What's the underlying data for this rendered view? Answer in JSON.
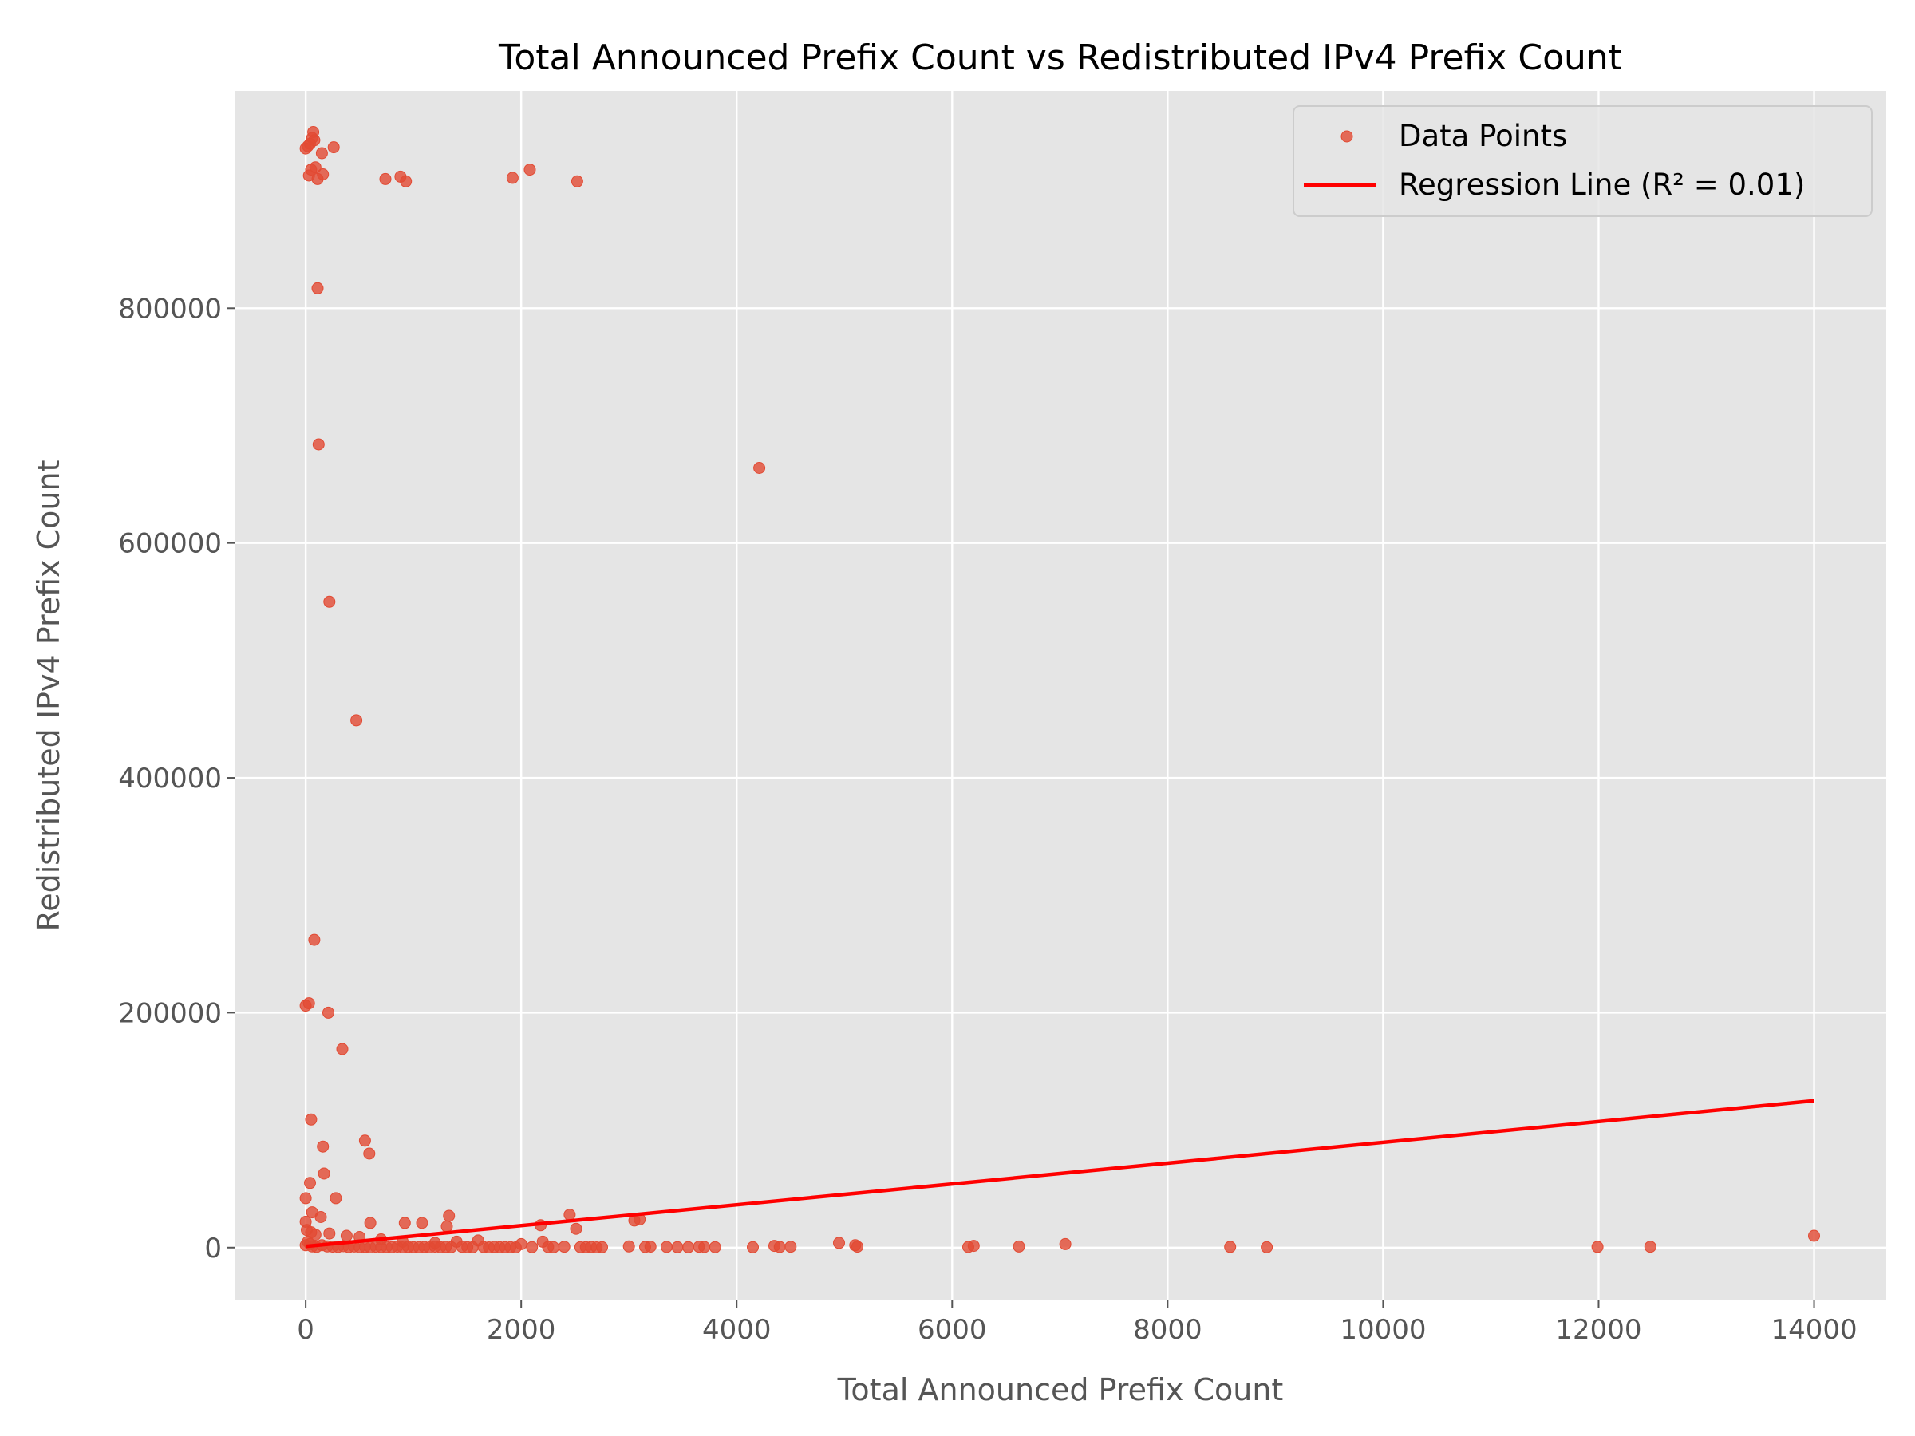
{
  "chart_data": {
    "type": "scatter",
    "title": "Total Announced Prefix Count vs Redistributed IPv4 Prefix Count",
    "xlabel": "Total Announced Prefix Count",
    "ylabel": "Redistributed IPv4 Prefix Count",
    "xlim": [
      -660,
      14670
    ],
    "ylim": [
      -45000,
      985000
    ],
    "xticks": [
      0,
      2000,
      4000,
      6000,
      8000,
      10000,
      12000,
      14000
    ],
    "xtick_labels": [
      "0",
      "2000",
      "4000",
      "6000",
      "8000",
      "10000",
      "12000",
      "14000"
    ],
    "yticks": [
      0,
      200000,
      400000,
      600000,
      800000
    ],
    "ytick_labels": [
      "0",
      "200000",
      "400000",
      "600000",
      "800000"
    ],
    "grid": true,
    "background": "#e5e5e5",
    "point_color": "#e24a33",
    "line_color": "#ff0000",
    "legend_position": "top-right",
    "legend": {
      "points_label": "Data Points",
      "line_label": "Regression Line (R² = 0.01)"
    },
    "regression": {
      "x": [
        0,
        14000
      ],
      "y": [
        1000,
        125000
      ]
    },
    "series": [
      {
        "name": "Data Points",
        "points": [
          [
            0,
            936000
          ],
          [
            20,
            938000
          ],
          [
            40,
            940000
          ],
          [
            60,
            945000
          ],
          [
            70,
            950000
          ],
          [
            80,
            943000
          ],
          [
            260,
            937000
          ],
          [
            150,
            932000
          ],
          [
            30,
            913000
          ],
          [
            50,
            918000
          ],
          [
            90,
            920000
          ],
          [
            110,
            910000
          ],
          [
            160,
            914000
          ],
          [
            740,
            910000
          ],
          [
            880,
            912000
          ],
          [
            930,
            908000
          ],
          [
            1920,
            911000
          ],
          [
            2080,
            918000
          ],
          [
            2520,
            908000
          ],
          [
            110,
            817000
          ],
          [
            120,
            684000
          ],
          [
            4210,
            664000
          ],
          [
            220,
            550000
          ],
          [
            470,
            449000
          ],
          [
            80,
            262000
          ],
          [
            0,
            206000
          ],
          [
            30,
            208000
          ],
          [
            210,
            200000
          ],
          [
            340,
            169000
          ],
          [
            50,
            109000
          ],
          [
            550,
            91000
          ],
          [
            160,
            86000
          ],
          [
            590,
            80000
          ],
          [
            170,
            63000
          ],
          [
            40,
            55000
          ],
          [
            0,
            42000
          ],
          [
            280,
            42000
          ],
          [
            60,
            30000
          ],
          [
            140,
            26000
          ],
          [
            1330,
            27000
          ],
          [
            2450,
            28000
          ],
          [
            0,
            22000
          ],
          [
            600,
            21000
          ],
          [
            920,
            21000
          ],
          [
            1080,
            21000
          ],
          [
            2180,
            19000
          ],
          [
            3050,
            23000
          ],
          [
            3100,
            24000
          ],
          [
            1310,
            18000
          ],
          [
            2510,
            16000
          ],
          [
            10,
            15000
          ],
          [
            50,
            13000
          ],
          [
            90,
            11000
          ],
          [
            220,
            12000
          ],
          [
            380,
            10000
          ],
          [
            500,
            9000
          ],
          [
            700,
            7000
          ],
          [
            900,
            5000
          ],
          [
            1200,
            4000
          ],
          [
            1400,
            5000
          ],
          [
            1600,
            6000
          ],
          [
            2000,
            3000
          ],
          [
            2200,
            5000
          ],
          [
            0,
            2000
          ],
          [
            20,
            5000
          ],
          [
            40,
            3000
          ],
          [
            60,
            1000
          ],
          [
            100,
            500
          ],
          [
            150,
            2000
          ],
          [
            200,
            1000
          ],
          [
            250,
            800
          ],
          [
            300,
            500
          ],
          [
            350,
            1200
          ],
          [
            400,
            400
          ],
          [
            450,
            900
          ],
          [
            500,
            300
          ],
          [
            550,
            600
          ],
          [
            600,
            200
          ],
          [
            650,
            700
          ],
          [
            700,
            400
          ],
          [
            750,
            500
          ],
          [
            800,
            300
          ],
          [
            850,
            800
          ],
          [
            900,
            200
          ],
          [
            950,
            600
          ],
          [
            1000,
            400
          ],
          [
            1050,
            300
          ],
          [
            1100,
            500
          ],
          [
            1150,
            200
          ],
          [
            1200,
            800
          ],
          [
            1250,
            300
          ],
          [
            1300,
            600
          ],
          [
            1350,
            400
          ],
          [
            1450,
            700
          ],
          [
            1500,
            400
          ],
          [
            1550,
            300
          ],
          [
            1650,
            500
          ],
          [
            1700,
            200
          ],
          [
            1750,
            600
          ],
          [
            1800,
            300
          ],
          [
            1850,
            400
          ],
          [
            1900,
            300
          ],
          [
            1950,
            200
          ],
          [
            2100,
            400
          ],
          [
            2250,
            500
          ],
          [
            2300,
            300
          ],
          [
            2400,
            700
          ],
          [
            2550,
            400
          ],
          [
            2600,
            300
          ],
          [
            2650,
            500
          ],
          [
            2700,
            200
          ],
          [
            2750,
            400
          ],
          [
            3000,
            1000
          ],
          [
            3150,
            500
          ],
          [
            3200,
            800
          ],
          [
            3350,
            600
          ],
          [
            3450,
            400
          ],
          [
            3550,
            300
          ],
          [
            3650,
            700
          ],
          [
            3700,
            500
          ],
          [
            3800,
            400
          ],
          [
            4150,
            300
          ],
          [
            4350,
            1500
          ],
          [
            4400,
            500
          ],
          [
            4500,
            700
          ],
          [
            4950,
            4000
          ],
          [
            5100,
            2000
          ],
          [
            5120,
            800
          ],
          [
            6150,
            500
          ],
          [
            6200,
            1500
          ],
          [
            6620,
            900
          ],
          [
            7050,
            3000
          ],
          [
            8580,
            600
          ],
          [
            8920,
            300
          ],
          [
            11990,
            600
          ],
          [
            12480,
            700
          ],
          [
            14000,
            10000
          ]
        ]
      }
    ]
  }
}
